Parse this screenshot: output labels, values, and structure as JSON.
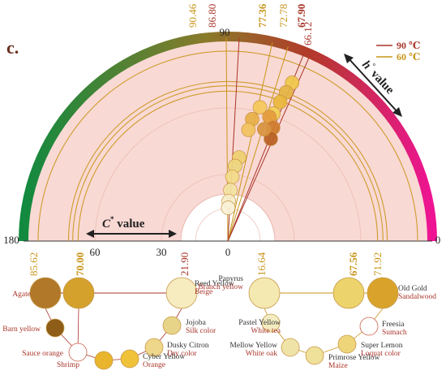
{
  "panel_label": "c.",
  "legend": {
    "items": [
      {
        "label": "90 ℃",
        "color": "#a9352a"
      },
      {
        "label": "60 ℃",
        "color": "#c9951a"
      }
    ]
  },
  "colors": {
    "red": "#a9352a",
    "gold": "#c9951a",
    "fill_pink": "#f9d9d4",
    "arc_start": "#118a3f",
    "arc_end": "#ee1493"
  },
  "axis": {
    "h_label_prefix": "h",
    "h_label_suffix": "value",
    "c_label_prefix": "C",
    "c_label_suffix": "value",
    "angle_ticks": [
      "180",
      "90",
      "0"
    ],
    "radial_ticks": [
      "60",
      "30",
      "0"
    ]
  },
  "chart_data": {
    "type": "scatter",
    "projection": "polar",
    "angle_range_deg": [
      0,
      180
    ],
    "chroma_range": [
      0,
      90
    ],
    "hue_annotations": [
      {
        "value": "90.46",
        "hue": 90.46,
        "series": "60 ℃"
      },
      {
        "value": "86.80",
        "hue": 86.8,
        "series": "90 ℃"
      },
      {
        "value": "77.36",
        "hue": 77.36,
        "series": "60 ℃"
      },
      {
        "value": "72.78",
        "hue": 72.78,
        "series": "60 ℃"
      },
      {
        "value": "67.90",
        "hue": 67.9,
        "series": "90 ℃"
      },
      {
        "value": "66.12",
        "hue": 66.12,
        "series": "90 ℃"
      }
    ],
    "chroma_annotations": [
      {
        "value": "85.62",
        "chroma": 85.62,
        "series": "60 ℃"
      },
      {
        "value": "70.00",
        "chroma": 70.0,
        "series": "60 ℃"
      },
      {
        "value": "21.90",
        "chroma": 21.9,
        "series": "90 ℃"
      },
      {
        "value": "16.64",
        "chroma": 16.64,
        "series": "60 ℃"
      },
      {
        "value": "67.56",
        "chroma": 67.56,
        "series": "60 ℃"
      },
      {
        "value": "71.92",
        "chroma": 71.92,
        "series": "60 ℃"
      }
    ],
    "points": [
      {
        "hue": 67.9,
        "chroma": 77,
        "color": "#f0c74a"
      },
      {
        "hue": 68.6,
        "chroma": 72,
        "color": "#e6b545"
      },
      {
        "hue": 69.4,
        "chroma": 67,
        "color": "#eab83c"
      },
      {
        "hue": 70.3,
        "chroma": 61,
        "color": "#f4cf52"
      },
      {
        "hue": 71.5,
        "chroma": 59,
        "color": "#e59b3c"
      },
      {
        "hue": 68.2,
        "chroma": 55,
        "color": "#cf7a2a"
      },
      {
        "hue": 67.2,
        "chroma": 50,
        "color": "#b86022"
      },
      {
        "hue": 72.0,
        "chroma": 53,
        "color": "#d89340"
      },
      {
        "hue": 76.5,
        "chroma": 62,
        "color": "#f5c85a"
      },
      {
        "hue": 78.7,
        "chroma": 56,
        "color": "#e8b048"
      },
      {
        "hue": 79.5,
        "chroma": 51,
        "color": "#f3c35e"
      },
      {
        "hue": 82.3,
        "chroma": 38,
        "color": "#f0d070"
      },
      {
        "hue": 84.5,
        "chroma": 34,
        "color": "#eed77e"
      },
      {
        "hue": 86.0,
        "chroma": 29,
        "color": "#f3dc8a"
      },
      {
        "hue": 87.2,
        "chroma": 23,
        "color": "#f4e4a3"
      },
      {
        "hue": 88.8,
        "chroma": 18,
        "color": "#f8eec9"
      },
      {
        "hue": 89.5,
        "chroma": 15,
        "color": "#faf3d8"
      }
    ]
  },
  "swatches": [
    {
      "name": "Agate",
      "color": "#b07828",
      "size": "big"
    },
    {
      "name": "",
      "color": "#d4a12d",
      "size": "big"
    },
    {
      "name": "Reed Yellow",
      "name2": "Beige",
      "color": "#f7ebc0",
      "size": "big"
    },
    {
      "name": "Papyrus",
      "name2": "Branch yellow",
      "color": "#f4e9b0",
      "size": "big"
    },
    {
      "name": "",
      "color": "#edd36b",
      "size": "big"
    },
    {
      "name": "Old Gold",
      "name2": "Sandalwood",
      "color": "#d9a32b",
      "size": "big"
    },
    {
      "name": "Barn yellow",
      "color": "#8e5d17",
      "size": "small"
    },
    {
      "name": "Sauce orange",
      "name2": "Shrimp",
      "color": "#ffffff",
      "size": "small"
    },
    {
      "name": "",
      "color": "#e8b52d",
      "size": "small"
    },
    {
      "name": "Cyber Yellow",
      "name2": "Orange",
      "color": "#f0c23a",
      "size": "small"
    },
    {
      "name": "Dusky Citron",
      "name2": "Dry color",
      "color": "#eed68a",
      "size": "small"
    },
    {
      "name": "Jojoba",
      "name2": "Silk color",
      "color": "#e7d488",
      "size": "small"
    },
    {
      "name": "Pastel Yellow",
      "name2": "White tea",
      "color": "#f3ecc0",
      "size": "small"
    },
    {
      "name": "Mellow Yellow",
      "name2": "White oak",
      "color": "#f0e3a8",
      "size": "small"
    },
    {
      "name": "",
      "color": "#efe09a",
      "size": "small"
    },
    {
      "name": "Primrose Yellow",
      "name2": "Maize",
      "color": "#eed57a",
      "size": "small"
    },
    {
      "name": "Super Lemon",
      "name2": "Loquat color",
      "color": "#ffffff",
      "size": "small"
    },
    {
      "name": "Freesia",
      "name2": "Sumach",
      "color": "#f2c33a",
      "size": "small"
    }
  ]
}
